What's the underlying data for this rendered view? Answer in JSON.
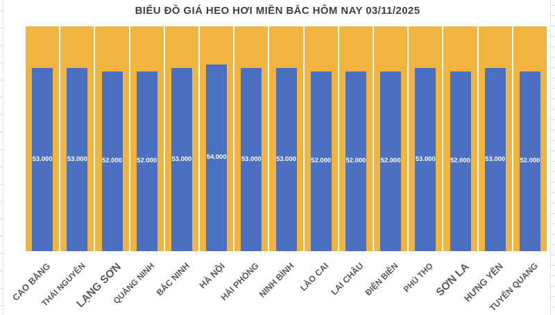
{
  "chart_data": {
    "type": "bar",
    "title": "BIỂU ĐỒ GIÁ HEO HƠI MIỀN BẮC HÔM NAY 03/11/2025",
    "categories": [
      "CAO BẰNG",
      "THÁI NGUYÊN",
      "LẠNG SƠN",
      "QUẢNG NINH",
      "BẮC NINH",
      "HÀ NỘI",
      "HẢI PHÒNG",
      "NINH BÌNH",
      "LÀO CAI",
      "LAI CHÂU",
      "ĐIỆN BIÊN",
      "PHÚ THỌ",
      "SƠN LA",
      "HƯNG YÊN",
      "TUYÊN QUANG"
    ],
    "values": [
      53000,
      53000,
      52000,
      52000,
      53000,
      54000,
      53000,
      53000,
      52000,
      52000,
      52000,
      53000,
      52000,
      53000,
      52000
    ],
    "value_labels": [
      "53.000",
      "53.000",
      "52.000",
      "52.000",
      "53.000",
      "54.000",
      "53.000",
      "53.000",
      "52.000",
      "52.000",
      "52.000",
      "53.000",
      "52.000",
      "53.000",
      "52.000"
    ],
    "xlabel": "",
    "ylabel": "",
    "ylim": [
      0,
      65000
    ],
    "backdrop_value": 65000,
    "grid": false,
    "legend": false,
    "colors": {
      "bar": "#4B6FC1",
      "backdrop": "#F1B53F",
      "data_label": "#ffffff",
      "category_label": "#595959",
      "title": "#3f3f3f"
    },
    "category_label_sizes": [
      13,
      12,
      15.5,
      12,
      12.5,
      13,
      12.5,
      12.5,
      12.5,
      12.5,
      12,
      12,
      15.5,
      13.5,
      12.5
    ]
  }
}
